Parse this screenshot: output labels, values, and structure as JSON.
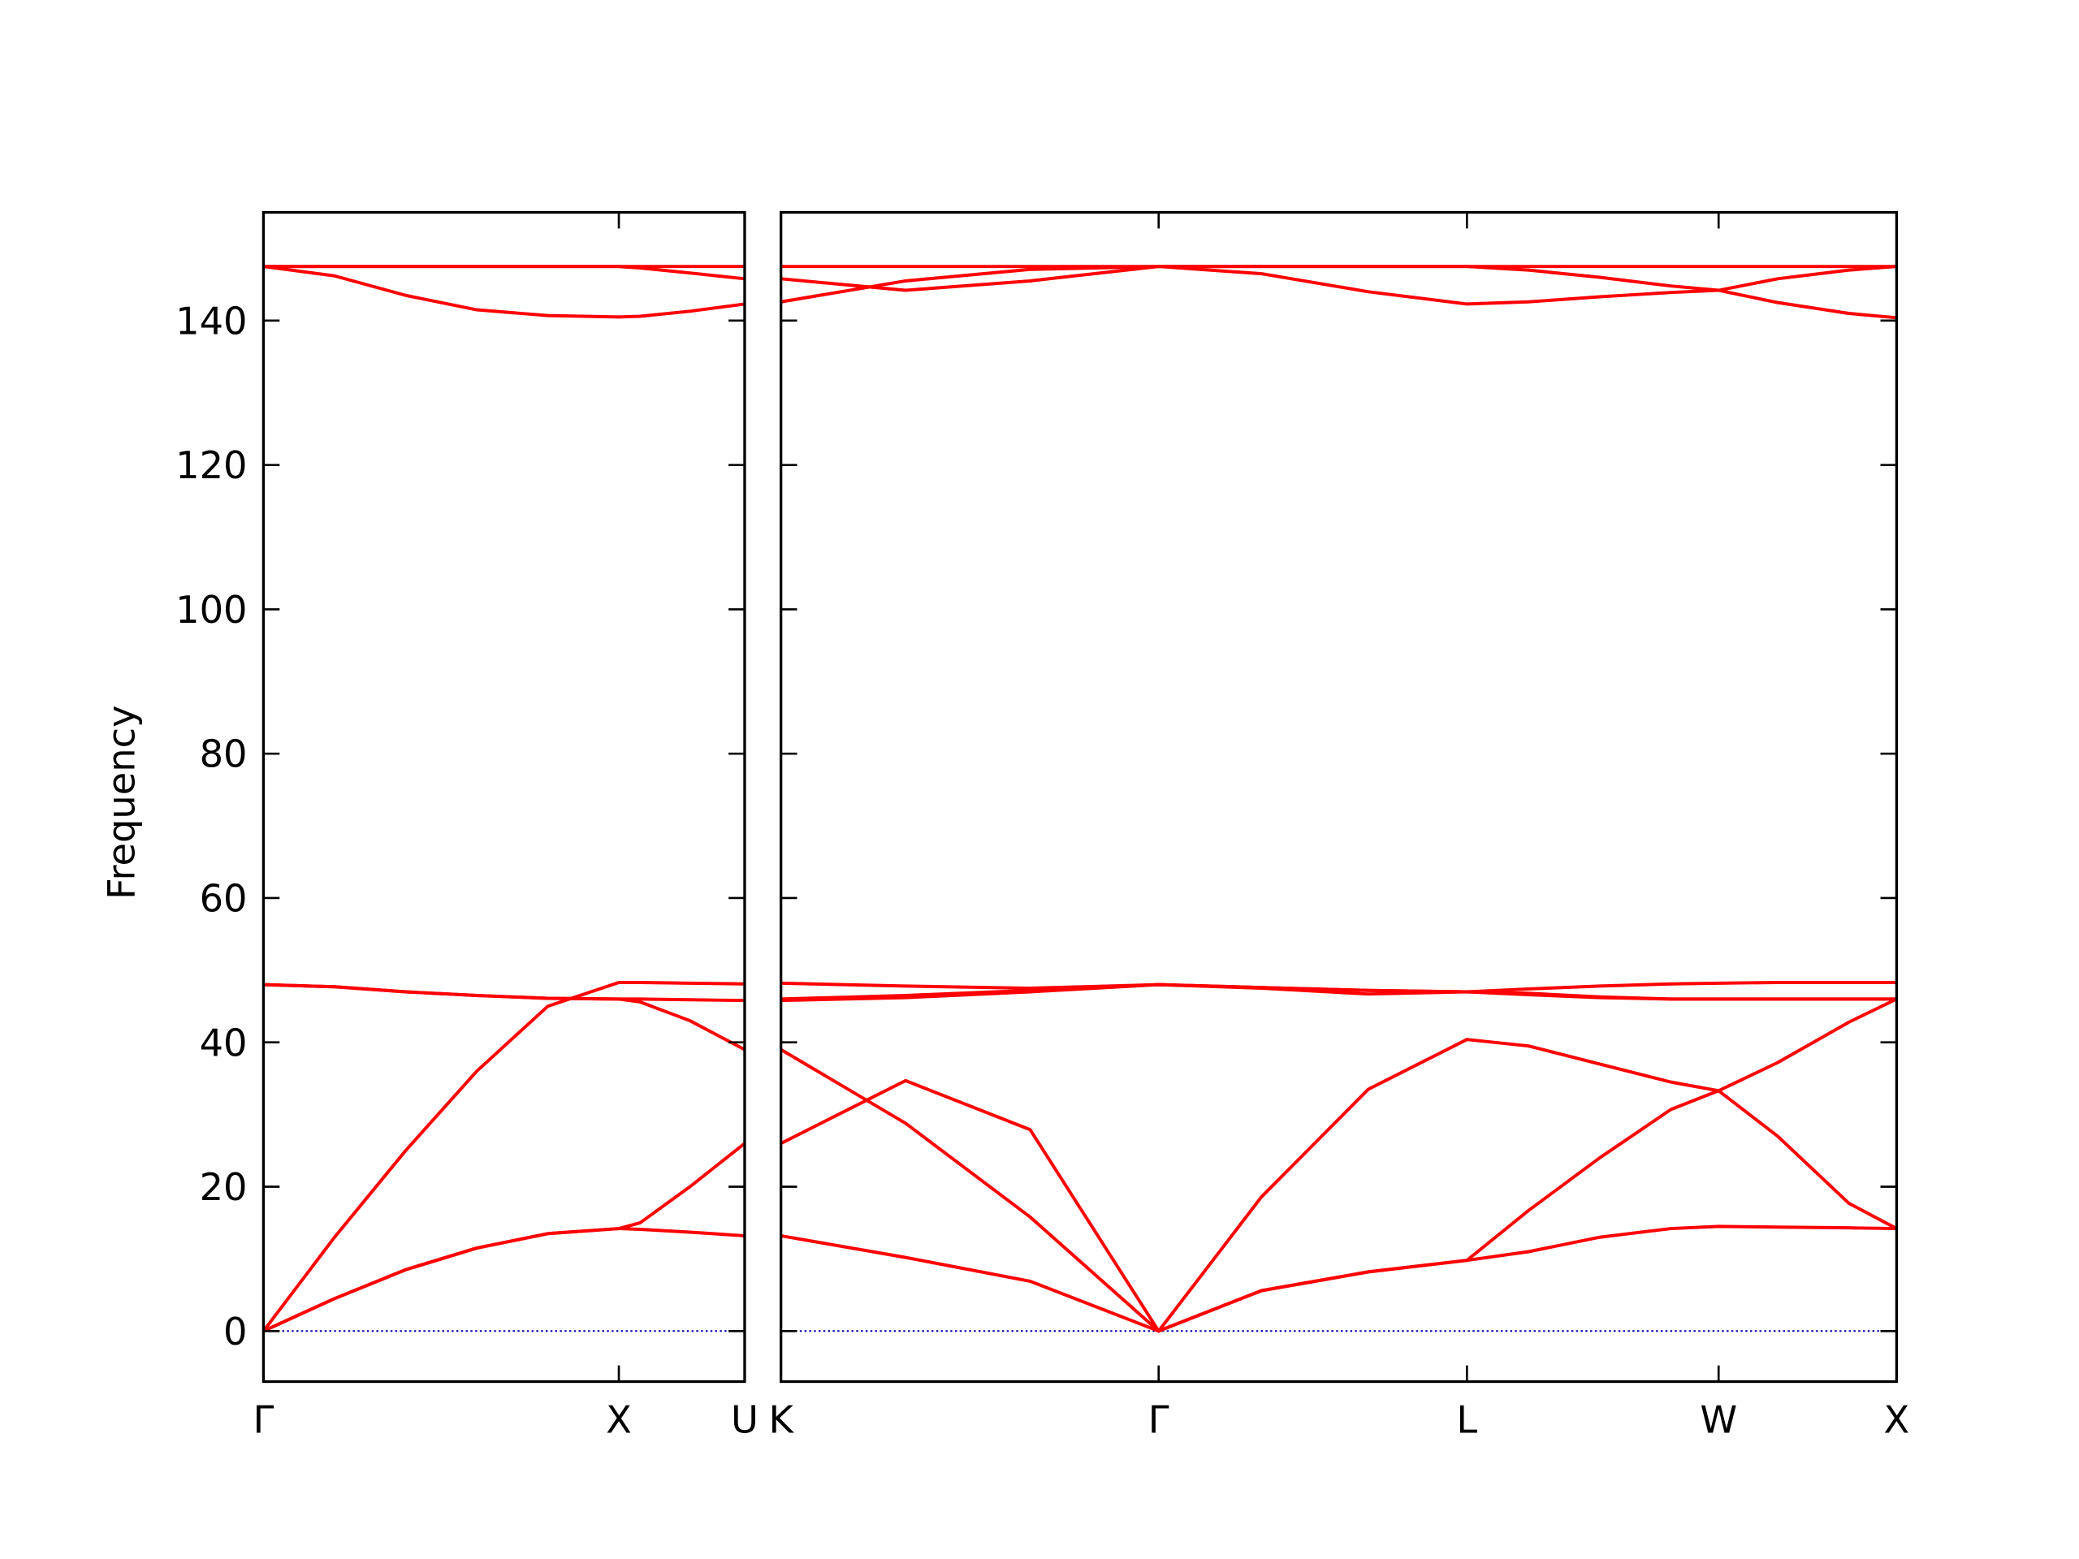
{
  "chart_data": [
    {
      "type": "line",
      "ylabel": "Frequency",
      "x": [
        0,
        0.2,
        0.4,
        0.6,
        0.8,
        1.0,
        1.06,
        1.2,
        1.354
      ],
      "xlim": [
        0,
        1.354
      ],
      "ylim": [
        -7,
        155
      ],
      "xticks": [
        {
          "value": 0,
          "label": "Γ"
        },
        {
          "value": 1.0,
          "label": "X"
        },
        {
          "value": 1.354,
          "label": "U"
        }
      ],
      "yticks": [
        0,
        20,
        40,
        60,
        80,
        100,
        120,
        140
      ],
      "reference_line": {
        "y": 0,
        "color": "#0000aa"
      },
      "series": [
        {
          "color": "#ff0000",
          "values": [
            0,
            4.5,
            8.5,
            11.5,
            13.5,
            14.2,
            14.1,
            13.7,
            13.2
          ]
        },
        {
          "color": "#ff0000",
          "values": [
            0,
            4.5,
            8.5,
            11.5,
            13.5,
            14.2,
            15,
            20,
            26
          ]
        },
        {
          "color": "#ff0000",
          "values": [
            0,
            13,
            25,
            36,
            45,
            48.3,
            48.3,
            48.2,
            48.1
          ]
        },
        {
          "color": "#ff0000",
          "values": [
            48,
            47.7,
            47,
            46.5,
            46.1,
            46,
            46,
            45.9,
            45.8
          ]
        },
        {
          "color": "#ff0000",
          "values": [
            48,
            47.7,
            47,
            46.5,
            46.1,
            46,
            45.6,
            43,
            39
          ]
        },
        {
          "color": "#ff0000",
          "values": [
            147.5,
            147.5,
            147.5,
            147.5,
            147.5,
            147.5,
            147.5,
            147.5,
            147.5
          ]
        },
        {
          "color": "#ff0000",
          "values": [
            147.5,
            147.5,
            147.5,
            147.5,
            147.5,
            147.5,
            147.3,
            146.6,
            145.8
          ]
        },
        {
          "color": "#ff0000",
          "values": [
            147.5,
            146.2,
            143.5,
            141.5,
            140.7,
            140.5,
            140.6,
            141.3,
            142.3
          ]
        }
      ]
    },
    {
      "type": "line",
      "x": [
        0,
        0.35,
        0.7,
        1.061,
        1.35,
        1.65,
        1.927,
        2.1,
        2.3,
        2.5,
        2.634,
        2.8,
        3.0,
        3.134
      ],
      "xlim": [
        0,
        3.134
      ],
      "ylim": [
        -7,
        155
      ],
      "xticks": [
        {
          "value": 0,
          "label": "K"
        },
        {
          "value": 1.061,
          "label": "Γ"
        },
        {
          "value": 1.927,
          "label": "L"
        },
        {
          "value": 2.634,
          "label": "W"
        },
        {
          "value": 3.134,
          "label": "X"
        }
      ],
      "yticks": [
        0,
        20,
        40,
        60,
        80,
        100,
        120,
        140
      ],
      "reference_line": {
        "y": 0,
        "color": "#0000aa"
      },
      "series": [
        {
          "color": "#ff0000",
          "values": [
            13.2,
            10.2,
            6.9,
            0,
            5.6,
            8.2,
            9.8,
            11,
            13,
            14.2,
            14.5,
            14.4,
            14.3,
            14.2
          ]
        },
        {
          "color": "#ff0000",
          "values": [
            26,
            34.7,
            27.9,
            0,
            5.6,
            8.2,
            9.8,
            16.7,
            24,
            30.7,
            33.3,
            27,
            17.7,
            14.2
          ]
        },
        {
          "color": "#ff0000",
          "values": [
            39,
            28.8,
            15.8,
            0,
            18.6,
            33.5,
            40.4,
            39.5,
            37,
            34.5,
            33.3,
            37.2,
            42.8,
            46
          ]
        },
        {
          "color": "#ff0000",
          "values": [
            48.2,
            47.8,
            47.5,
            48,
            47.6,
            47.2,
            47,
            47.4,
            47.8,
            48.1,
            48.2,
            48.3,
            48.3,
            48.3
          ]
        },
        {
          "color": "#ff0000",
          "values": [
            46,
            46.5,
            47.2,
            48,
            47.5,
            46.7,
            47,
            46.8,
            46.3,
            46,
            46,
            46,
            46,
            46
          ]
        },
        {
          "color": "#ff0000",
          "values": [
            45.8,
            46.2,
            47,
            48,
            47.6,
            47.2,
            47,
            46.6,
            46.2,
            46,
            46,
            46,
            46,
            46
          ]
        },
        {
          "color": "#ff0000",
          "values": [
            147.5,
            147.5,
            147.5,
            147.5,
            147.5,
            147.5,
            147.5,
            147.5,
            147.5,
            147.5,
            147.5,
            147.5,
            147.5,
            147.5
          ]
        },
        {
          "color": "#ff0000",
          "values": [
            145.8,
            144.2,
            145.5,
            147.5,
            146.5,
            144,
            142.3,
            142.6,
            143.3,
            143.9,
            144.2,
            145.8,
            147,
            147.5
          ]
        },
        {
          "color": "#ff0000",
          "values": [
            142.6,
            145.5,
            147.1,
            147.5,
            147.5,
            147.5,
            147.5,
            147,
            146,
            144.8,
            144.2,
            142.5,
            141,
            140.4
          ]
        }
      ]
    }
  ]
}
